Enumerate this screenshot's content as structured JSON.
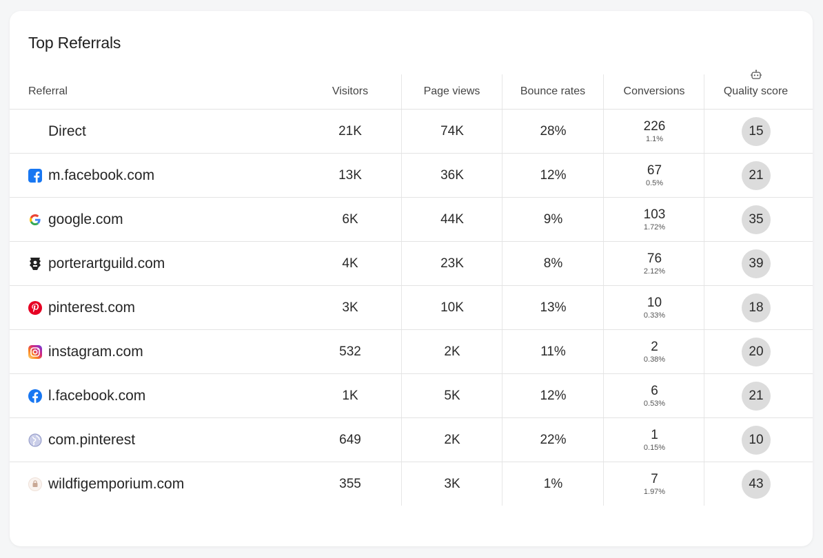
{
  "title": "Top Referrals",
  "columns": {
    "referral": "Referral",
    "visitors": "Visitors",
    "page_views": "Page views",
    "bounce_rates": "Bounce rates",
    "conversions": "Conversions",
    "quality_score": "Quality score"
  },
  "rows": [
    {
      "name": "Direct",
      "icon": "none",
      "visitors": "21K",
      "page_views": "74K",
      "bounce": "28%",
      "conv": "226",
      "conv_pct": "1.1%",
      "score": "15"
    },
    {
      "name": "m.facebook.com",
      "icon": "facebook-square-icon",
      "visitors": "13K",
      "page_views": "36K",
      "bounce": "12%",
      "conv": "67",
      "conv_pct": "0.5%",
      "score": "21"
    },
    {
      "name": "google.com",
      "icon": "google-icon",
      "visitors": "6K",
      "page_views": "44K",
      "bounce": "9%",
      "conv": "103",
      "conv_pct": "1.72%",
      "score": "35"
    },
    {
      "name": "porterartguild.com",
      "icon": "guild-shield-icon",
      "visitors": "4K",
      "page_views": "23K",
      "bounce": "8%",
      "conv": "76",
      "conv_pct": "2.12%",
      "score": "39"
    },
    {
      "name": "pinterest.com",
      "icon": "pinterest-icon",
      "visitors": "3K",
      "page_views": "10K",
      "bounce": "13%",
      "conv": "10",
      "conv_pct": "0.33%",
      "score": "18"
    },
    {
      "name": "instagram.com",
      "icon": "instagram-icon",
      "visitors": "532",
      "page_views": "2K",
      "bounce": "11%",
      "conv": "2",
      "conv_pct": "0.38%",
      "score": "20"
    },
    {
      "name": "l.facebook.com",
      "icon": "facebook-circle-icon",
      "visitors": "1K",
      "page_views": "5K",
      "bounce": "12%",
      "conv": "6",
      "conv_pct": "0.53%",
      "score": "21"
    },
    {
      "name": "com.pinterest",
      "icon": "globe-icon",
      "visitors": "649",
      "page_views": "2K",
      "bounce": "22%",
      "conv": "1",
      "conv_pct": "0.15%",
      "score": "10"
    },
    {
      "name": "wildfigemporium.com",
      "icon": "store-icon",
      "visitors": "355",
      "page_views": "3K",
      "bounce": "1%",
      "conv": "7",
      "conv_pct": "1.97%",
      "score": "43"
    }
  ],
  "colors": {
    "facebook": "#1877f2",
    "pinterest": "#e60023",
    "badge": "#dcdcdc"
  }
}
